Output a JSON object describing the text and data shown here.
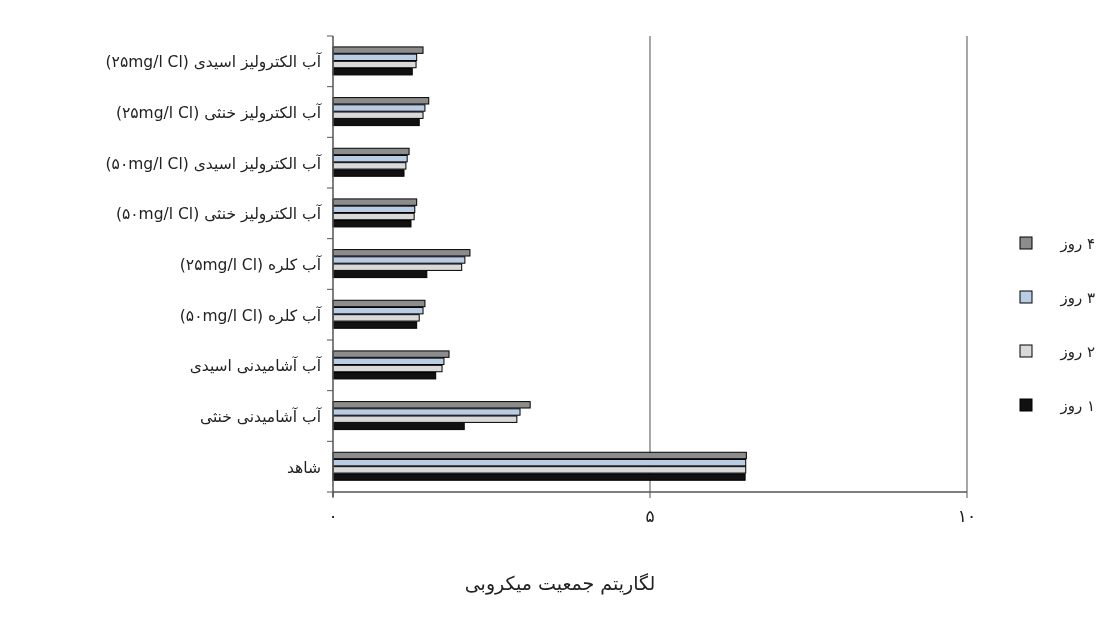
{
  "chart_data": {
    "type": "bar",
    "orientation": "horizontal",
    "xlabel": "لگاریتم جمعیت میکروبی",
    "categories": [
      "آب الکترولیز اسیدی (۲۵mg/l Cl)",
      "آب الکترولیز خنثی (۲۵mg/l Cl)",
      "آب الکترولیز اسیدی (۵۰mg/l Cl)",
      "آب الکترولیز خنثی (۵۰mg/l Cl)",
      "آب کلره (۲۵mg/l Cl)",
      "آب کلره (۵۰mg/l Cl)",
      "آب آشامیدنی اسیدی",
      "آب آشامیدنی خنثی",
      "شاهد"
    ],
    "series": [
      {
        "name": "۴ روز",
        "color": "#8c8c8c",
        "values": [
          1.42,
          1.51,
          1.2,
          1.32,
          2.16,
          1.45,
          1.83,
          3.11,
          6.52
        ]
      },
      {
        "name": "۳ روز",
        "color": "#b8cce4",
        "values": [
          1.32,
          1.45,
          1.17,
          1.29,
          2.08,
          1.42,
          1.75,
          2.95,
          6.51
        ]
      },
      {
        "name": "۲ روز",
        "color": "#d9d9d9",
        "values": [
          1.31,
          1.42,
          1.15,
          1.28,
          2.03,
          1.36,
          1.72,
          2.9,
          6.51
        ]
      },
      {
        "name": "۱ روز",
        "color": "#111111",
        "values": [
          1.25,
          1.36,
          1.12,
          1.23,
          1.48,
          1.32,
          1.62,
          2.07,
          6.5
        ]
      }
    ],
    "xlim": [
      0,
      10
    ],
    "xticks": [
      {
        "value": 0,
        "label": "۰"
      },
      {
        "value": 5,
        "label": "۵"
      },
      {
        "value": 10,
        "label": "۱۰"
      }
    ],
    "grid": "x",
    "legend": "right"
  }
}
